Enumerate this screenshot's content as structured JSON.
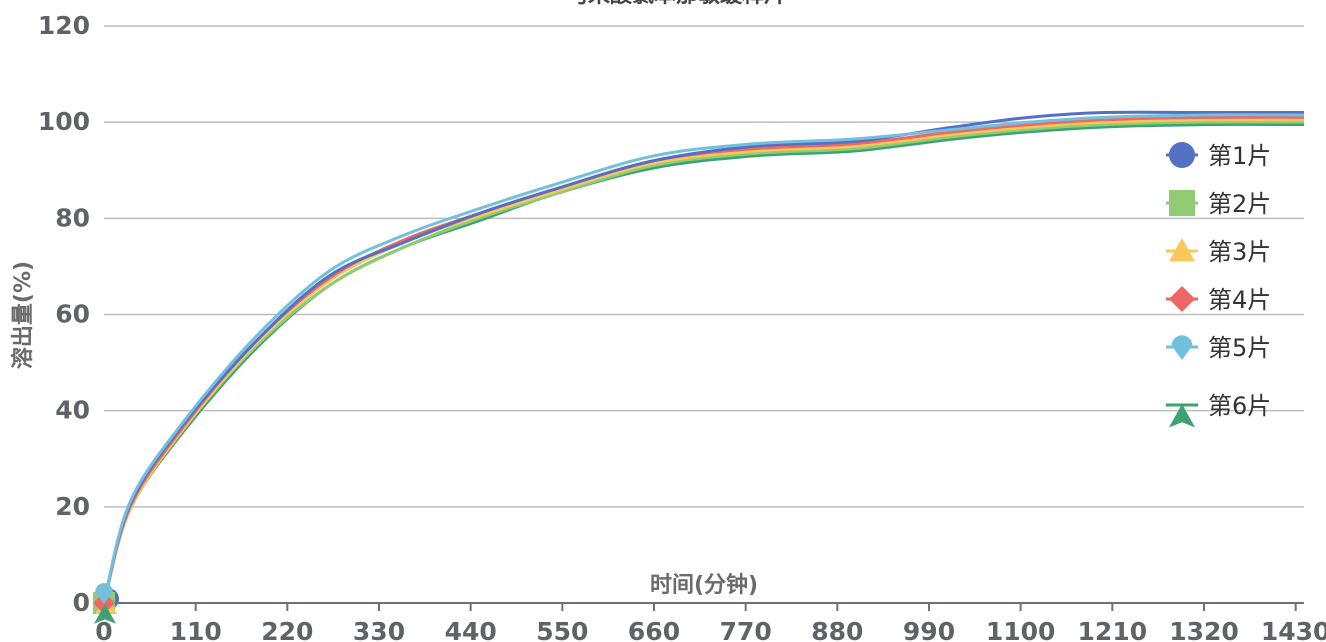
{
  "chart_data": {
    "type": "line",
    "title": "马来酸氯苯那敏缓释片",
    "xlabel": "时间(分钟)",
    "ylabel": "溶出量(%)",
    "xlim": [
      0,
      1440
    ],
    "ylim": [
      0,
      120
    ],
    "x_ticks": [
      0,
      110,
      220,
      330,
      440,
      550,
      660,
      770,
      880,
      990,
      1100,
      1210,
      1320,
      1430
    ],
    "y_ticks": [
      0,
      20,
      40,
      60,
      80,
      100,
      120
    ],
    "grid": true,
    "legend_position": "right",
    "x": [
      0,
      30,
      90,
      180,
      270,
      360,
      450,
      540,
      660,
      780,
      900,
      1020,
      1110,
      1200,
      1320,
      1440
    ],
    "series": [
      {
        "name": "第1片",
        "color": "#5470c6",
        "marker": "circle",
        "values": [
          0,
          20,
          36,
          54,
          68,
          75,
          81,
          86,
          92,
          95,
          96,
          99,
          101,
          102,
          102,
          102
        ]
      },
      {
        "name": "第2片",
        "color": "#91cc75",
        "marker": "square",
        "values": [
          0,
          19,
          35,
          53,
          66,
          74,
          80,
          85,
          91,
          93.5,
          94.5,
          97,
          98.5,
          99.5,
          100,
          100
        ]
      },
      {
        "name": "第3片",
        "color": "#fac858",
        "marker": "triangle",
        "values": [
          0,
          19,
          35,
          53.5,
          67,
          75,
          80.5,
          85.5,
          91.5,
          94,
          95,
          97.5,
          99,
          100,
          100.5,
          100.5
        ]
      },
      {
        "name": "第4片",
        "color": "#ee6666",
        "marker": "diamond",
        "values": [
          0,
          19.5,
          35.5,
          54,
          67.5,
          75.5,
          81,
          86,
          92,
          94.5,
          95.5,
          98,
          99.5,
          100.5,
          101,
          101
        ]
      },
      {
        "name": "第5片",
        "color": "#73c0de",
        "marker": "pin",
        "values": [
          0,
          20.5,
          36.5,
          55,
          69,
          76.5,
          82,
          87,
          93,
          95.5,
          96.5,
          98.5,
          100,
          101,
          101.5,
          101.5
        ]
      },
      {
        "name": "第6片",
        "color": "#3ba272",
        "marker": "arrow",
        "values": [
          0,
          19,
          34.5,
          52.5,
          66,
          74,
          79.5,
          85,
          90.5,
          93,
          94,
          96.5,
          98,
          99,
          99.5,
          99.5
        ]
      }
    ]
  }
}
